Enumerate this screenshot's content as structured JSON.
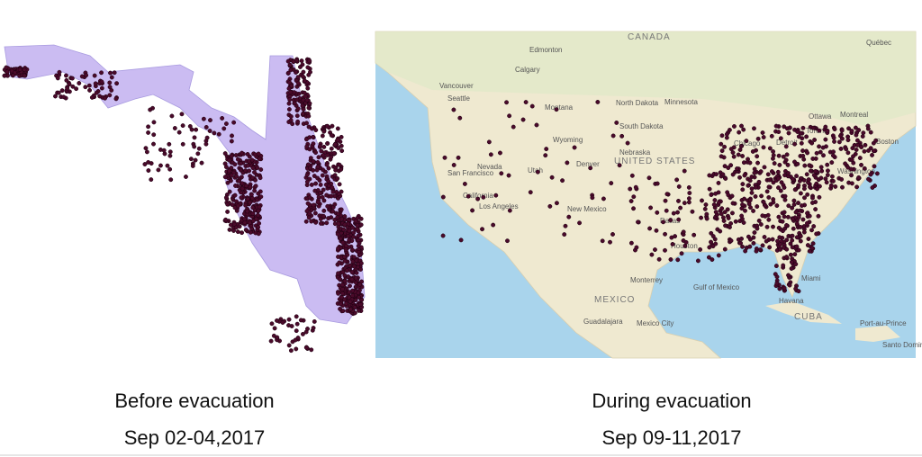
{
  "left_panel": {
    "caption": "Before evacuation",
    "dates": "Sep 02-04,2017"
  },
  "right_panel": {
    "caption": "During evacuation",
    "dates": "Sep 09-11,2017",
    "map_labels": [
      "CANADA",
      "Edmonton",
      "Calgary",
      "Vancouver",
      "Seattle",
      "Montana",
      "North Dakota",
      "Minnesota",
      "South Dakota",
      "Wyoming",
      "Nebraska",
      "UNITED STATES",
      "Denver",
      "San Francisco",
      "Nevada",
      "Utah",
      "California",
      "Los Angeles",
      "New Mexico",
      "Dallas",
      "Houston",
      "Ottawa",
      "Montreal",
      "Toronto",
      "Detroit",
      "Chicago",
      "Boston",
      "Washington",
      "Miami",
      "Havana",
      "CUBA",
      "MEXICO",
      "Monterrey",
      "Gulf of Mexico",
      "Guadalajara",
      "Mexico City",
      "Port-au-Prince",
      "Santo Domingo",
      "Québec"
    ]
  }
}
